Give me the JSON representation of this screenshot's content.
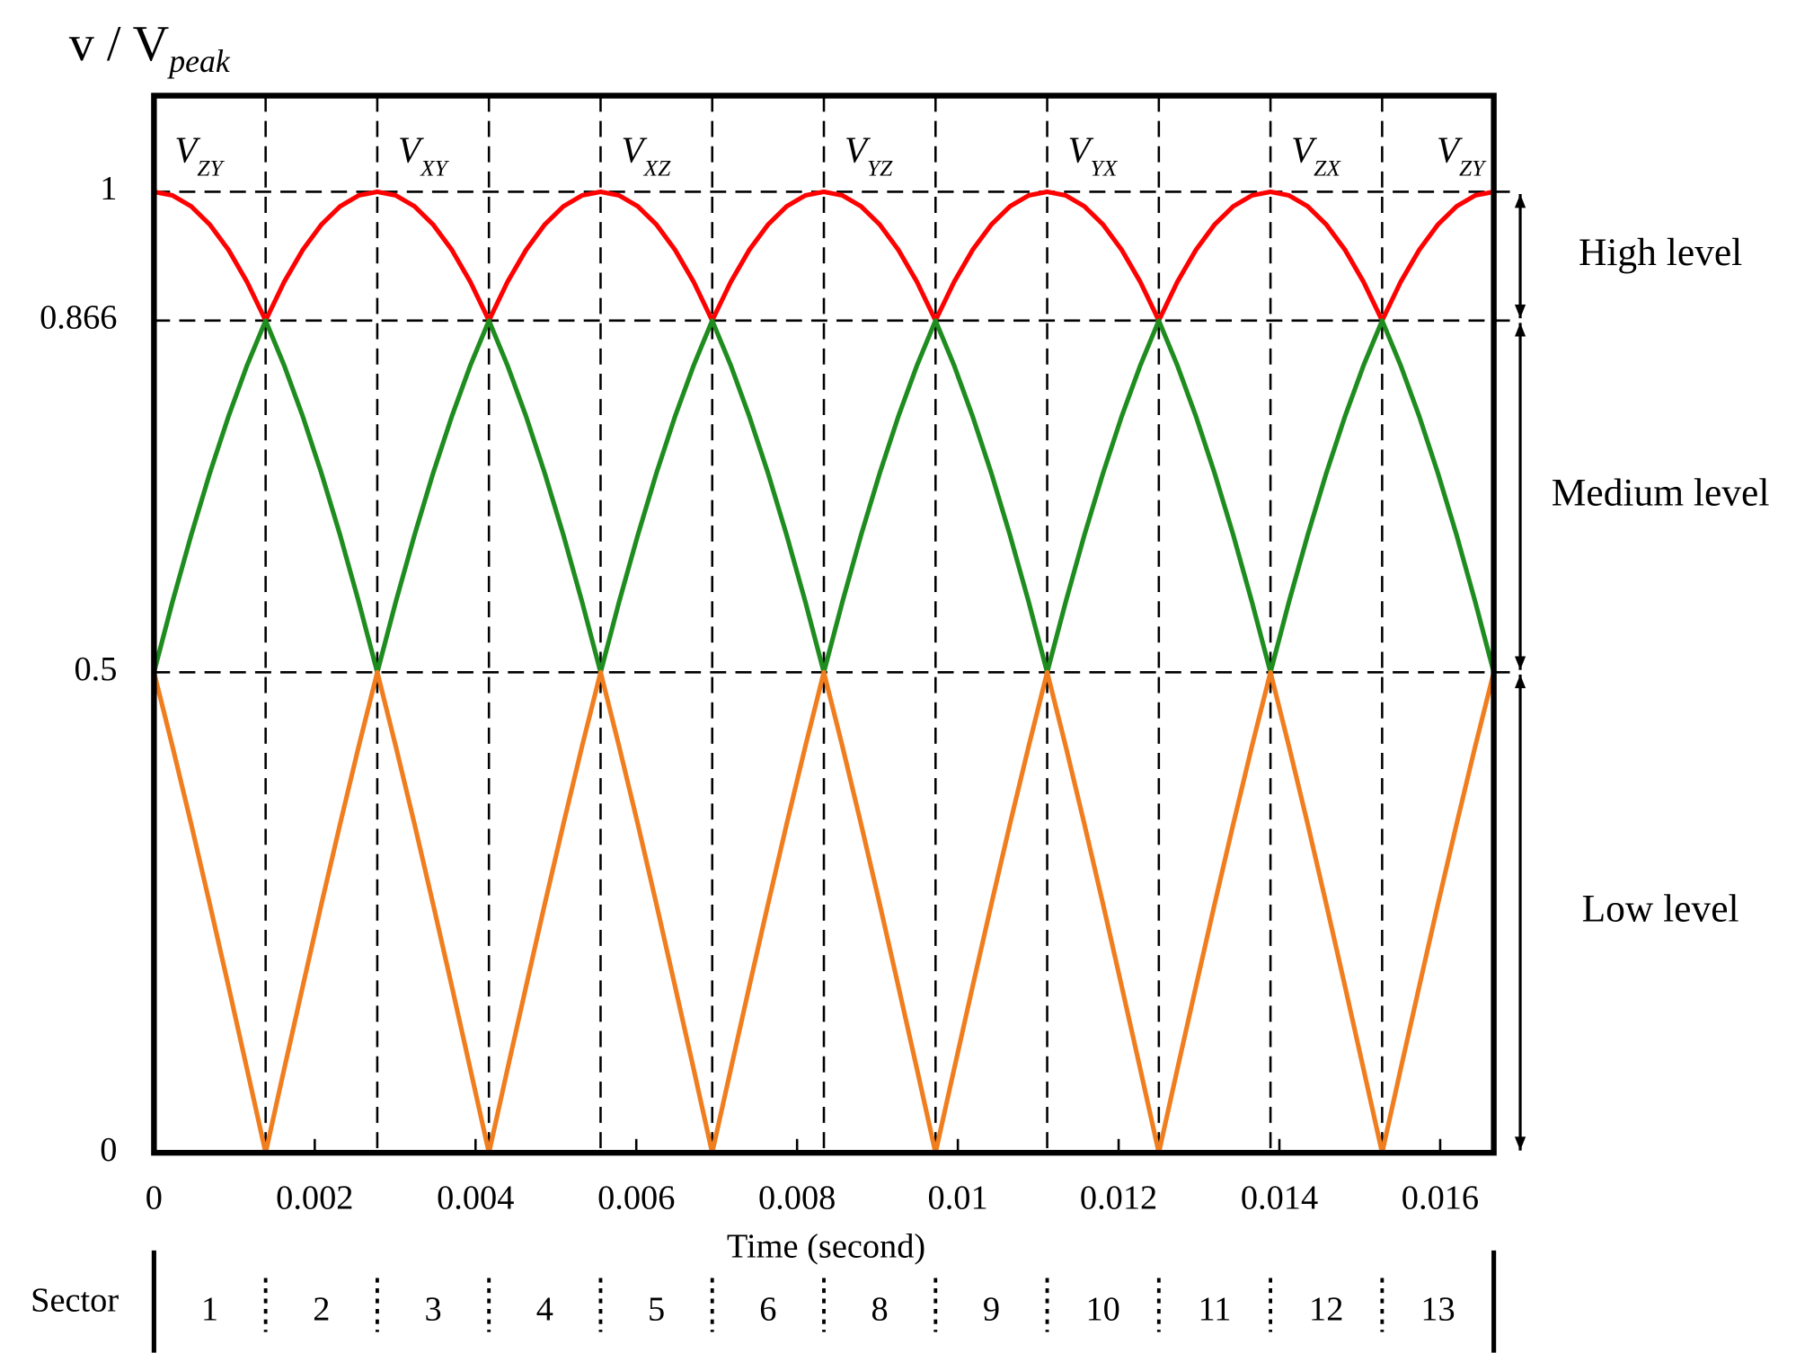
{
  "chart_data": {
    "type": "line",
    "ylabel": {
      "text": "v / V",
      "sub": "peak"
    },
    "xlabel": "Time (second)",
    "x": [
      0,
      0.000231,
      0.000463,
      0.000694,
      0.000926,
      0.001157,
      0.001389,
      0.00162,
      0.001852,
      0.002083,
      0.002315,
      0.002546,
      0.002778,
      0.003009,
      0.003241,
      0.003472,
      0.003704,
      0.003935,
      0.004167,
      0.004398,
      0.00463,
      0.004861,
      0.005093,
      0.005324,
      0.005556,
      0.005787,
      0.006019,
      0.00625,
      0.006481,
      0.006713,
      0.006944,
      0.007176,
      0.007407,
      0.007639,
      0.00787,
      0.008102,
      0.008333,
      0.008565,
      0.008796,
      0.009028,
      0.009259,
      0.009491,
      0.009722,
      0.009954,
      0.010185,
      0.010417,
      0.010648,
      0.01088,
      0.011111,
      0.011343,
      0.011574,
      0.011806,
      0.012037,
      0.012269,
      0.0125,
      0.012731,
      0.012963,
      0.013194,
      0.013426,
      0.013657,
      0.013889,
      0.01412,
      0.014352,
      0.014583,
      0.014815,
      0.015046,
      0.015278,
      0.015509,
      0.015741,
      0.015972,
      0.016204,
      0.016435,
      0.016667
    ],
    "series": [
      {
        "color": "#ff0000",
        "values": [
          1,
          0.9962,
          0.9848,
          0.9659,
          0.9397,
          0.9063,
          0.866,
          0.9063,
          0.9397,
          0.9659,
          0.9848,
          0.9962,
          1,
          0.9962,
          0.9848,
          0.9659,
          0.9397,
          0.9063,
          0.866,
          0.9063,
          0.9397,
          0.9659,
          0.9848,
          0.9962,
          1,
          0.9962,
          0.9848,
          0.9659,
          0.9397,
          0.9063,
          0.866,
          0.9063,
          0.9397,
          0.9659,
          0.9848,
          0.9962,
          1,
          0.9962,
          0.9848,
          0.9659,
          0.9397,
          0.9063,
          0.866,
          0.9063,
          0.9397,
          0.9659,
          0.9848,
          0.9962,
          1,
          0.9962,
          0.9848,
          0.9659,
          0.9397,
          0.9063,
          0.866,
          0.9063,
          0.9397,
          0.9659,
          0.9848,
          0.9962,
          1,
          0.9962,
          0.9848,
          0.9659,
          0.9397,
          0.9063,
          0.866,
          0.9063,
          0.9397,
          0.9659,
          0.9848,
          0.9962,
          1
        ]
      },
      {
        "color": "#1e8c1e",
        "values": [
          0.5,
          0.5736,
          0.6428,
          0.7071,
          0.766,
          0.8192,
          0.866,
          0.8192,
          0.766,
          0.7071,
          0.6428,
          0.5736,
          0.5,
          0.5736,
          0.6428,
          0.7071,
          0.766,
          0.8192,
          0.866,
          0.8192,
          0.766,
          0.7071,
          0.6428,
          0.5736,
          0.5,
          0.5736,
          0.6428,
          0.7071,
          0.766,
          0.8192,
          0.866,
          0.8192,
          0.766,
          0.7071,
          0.6428,
          0.5736,
          0.5,
          0.5736,
          0.6428,
          0.7071,
          0.766,
          0.8192,
          0.866,
          0.8192,
          0.766,
          0.7071,
          0.6428,
          0.5736,
          0.5,
          0.5736,
          0.6428,
          0.7071,
          0.766,
          0.8192,
          0.866,
          0.8192,
          0.766,
          0.7071,
          0.6428,
          0.5736,
          0.5,
          0.5736,
          0.6428,
          0.7071,
          0.766,
          0.8192,
          0.866,
          0.8192,
          0.766,
          0.7071,
          0.6428,
          0.5736,
          0.5
        ]
      },
      {
        "color": "#f07d1e",
        "values": [
          0.5,
          0.4226,
          0.342,
          0.2588,
          0.1736,
          0.0872,
          0,
          0.0872,
          0.1736,
          0.2588,
          0.342,
          0.4226,
          0.5,
          0.4226,
          0.342,
          0.2588,
          0.1736,
          0.0872,
          0,
          0.0872,
          0.1736,
          0.2588,
          0.342,
          0.4226,
          0.5,
          0.4226,
          0.342,
          0.2588,
          0.1736,
          0.0872,
          0,
          0.0872,
          0.1736,
          0.2588,
          0.342,
          0.4226,
          0.5,
          0.4226,
          0.342,
          0.2588,
          0.1736,
          0.0872,
          0,
          0.0872,
          0.1736,
          0.2588,
          0.342,
          0.4226,
          0.5,
          0.4226,
          0.342,
          0.2588,
          0.1736,
          0.0872,
          0,
          0.0872,
          0.1736,
          0.2588,
          0.342,
          0.4226,
          0.5,
          0.4226,
          0.342,
          0.2588,
          0.1736,
          0.0872,
          0,
          0.0872,
          0.1736,
          0.2588,
          0.342,
          0.4226,
          0.5
        ]
      }
    ],
    "xlim": [
      0,
      0.016667
    ],
    "ylim": [
      0,
      1.1
    ],
    "xticks": [
      0,
      0.002,
      0.004,
      0.006,
      0.008,
      0.01,
      0.012,
      0.014,
      0.016
    ],
    "yticks": [
      0,
      0.5,
      0.866,
      1
    ],
    "grid": true,
    "annotations": [
      {
        "text": "V",
        "sub": "ZY",
        "x": 0
      },
      {
        "text": "V",
        "sub": "XY",
        "x": 0.002778
      },
      {
        "text": "V",
        "sub": "XZ",
        "x": 0.005556
      },
      {
        "text": "V",
        "sub": "YZ",
        "x": 0.008333
      },
      {
        "text": "V",
        "sub": "YX",
        "x": 0.011111
      },
      {
        "text": "V",
        "sub": "ZX",
        "x": 0.013889
      },
      {
        "text": "V",
        "sub": "ZY",
        "x": 0.016667
      }
    ],
    "levels": [
      "Low level",
      "Medium level",
      "High level"
    ],
    "sectors": {
      "label": "Sector",
      "names": [
        "1",
        "2",
        "3",
        "4",
        "5",
        "6",
        "8",
        "9",
        "10",
        "11",
        "12",
        "13"
      ]
    }
  }
}
